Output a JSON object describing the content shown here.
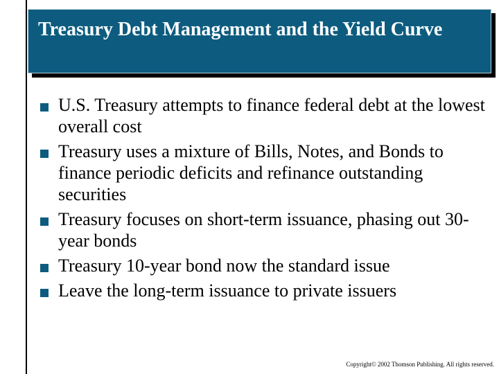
{
  "slide": {
    "title": "Treasury Debt Management and the Yield Curve",
    "bullet_icon": "square-bullet-icon",
    "bullets": [
      "U.S. Treasury attempts to finance federal debt at the lowest overall cost",
      "Treasury uses a mixture of Bills, Notes, and Bonds to finance periodic deficits and refinance outstanding securities",
      "Treasury focuses on short-term issuance, phasing out 30-year bonds",
      "Treasury 10-year bond now the standard issue",
      "Leave the long-term issuance to private issuers"
    ],
    "copyright": "Copyright© 2002 Thomson Publishing. All rights reserved."
  },
  "colors": {
    "title_background": "#0d5c7f",
    "title_text": "#ffffff",
    "bullet": "#0d5c7f",
    "body_text": "#000000"
  }
}
